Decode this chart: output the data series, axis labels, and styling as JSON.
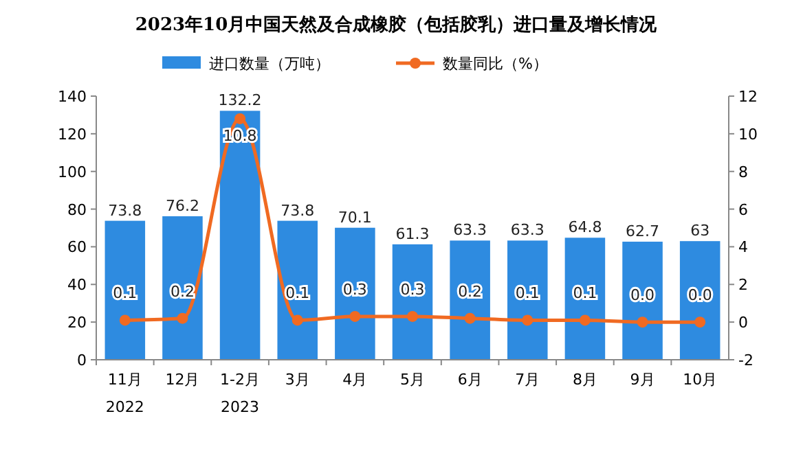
{
  "chart_data": {
    "type": "bar",
    "title": "2023年10月中国天然及合成橡胶（包括胶乳）进口量及增长情况",
    "categories": [
      "11月\n2022",
      "12月",
      "1-2月\n2023",
      "3月",
      "4月",
      "5月",
      "6月",
      "7月",
      "8月",
      "9月",
      "10月"
    ],
    "series": [
      {
        "name": "进口数量（万吨）",
        "color": "#2e8be0",
        "values": [
          73.8,
          76.2,
          132.2,
          73.8,
          70.1,
          61.3,
          63.3,
          63.3,
          64.8,
          62.7,
          63
        ],
        "value_labels": [
          "73.8",
          "76.2",
          "132.2",
          "73.8",
          "70.1",
          "61.3",
          "63.3",
          "63.3",
          "64.8",
          "62.7",
          "63"
        ]
      },
      {
        "name": "数量同比（%）",
        "type": "line",
        "axis": "y2",
        "color": "#f06a22",
        "marker": "circle",
        "values": [
          0.1,
          0.2,
          10.8,
          0.1,
          0.3,
          0.3,
          0.2,
          0.1,
          0.1,
          0.0,
          0.0
        ],
        "value_labels": [
          "0.1",
          "0.2",
          "10.8",
          "0.1",
          "0.3",
          "0.3",
          "0.2",
          "0.1",
          "0.1",
          "0.0",
          "0.0"
        ]
      }
    ],
    "ylim": [
      0,
      140
    ],
    "yticks": [
      0,
      20,
      40,
      60,
      80,
      100,
      120,
      140
    ],
    "y2lim": [
      -2,
      12
    ],
    "y2ticks": [
      -2,
      0,
      2,
      4,
      6,
      8,
      10,
      12
    ],
    "legend": "top",
    "grid": false
  }
}
